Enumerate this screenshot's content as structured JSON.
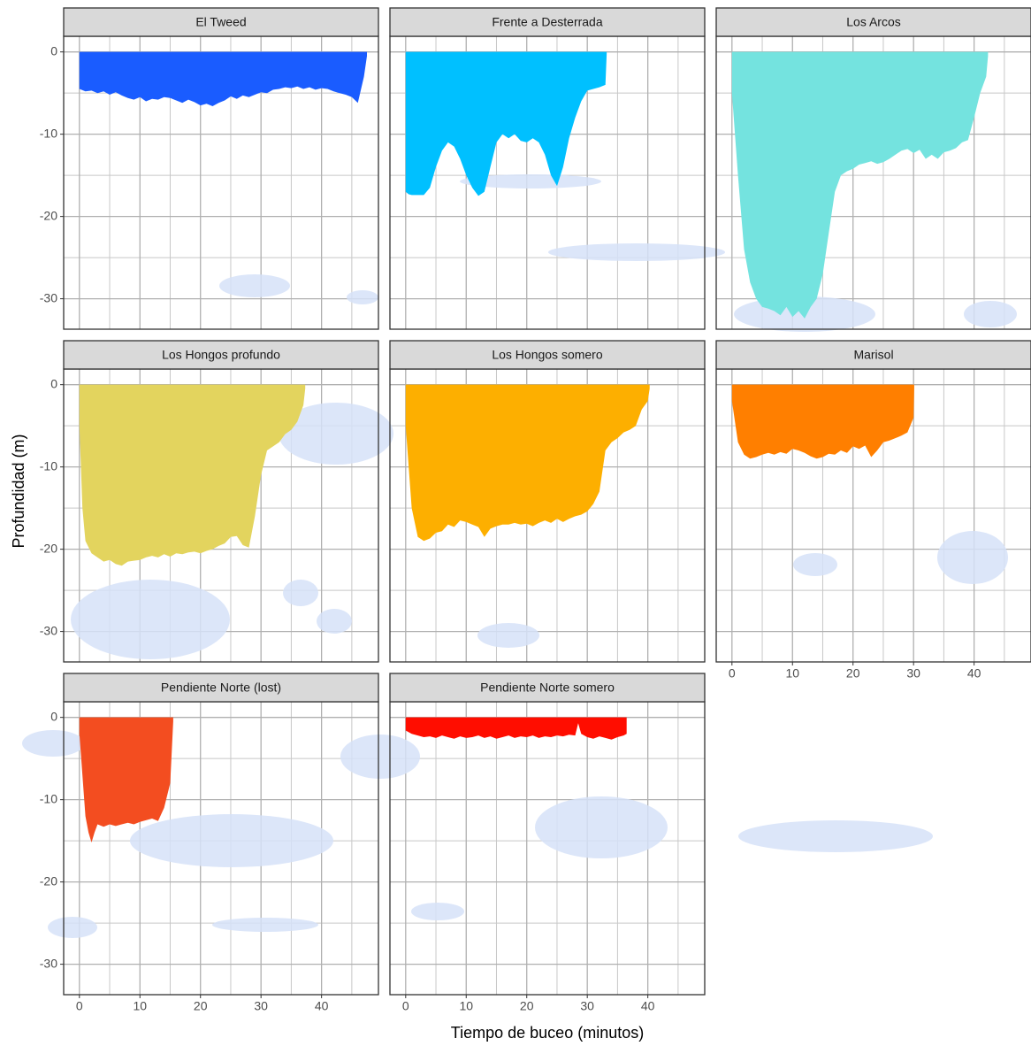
{
  "chart_data": {
    "type": "area",
    "xlabel": "Tiempo de buceo (minutos)",
    "ylabel": "Profundidad (m)",
    "xlim": [
      -2.6,
      49.4
    ],
    "ylim": [
      -33.7,
      1.9
    ],
    "xticks": [
      0,
      10,
      20,
      30,
      40
    ],
    "yticks": [
      0,
      -10,
      -20,
      -30
    ],
    "x_minor_ticks": [
      5,
      15,
      25,
      35,
      45
    ],
    "y_minor_ticks": [
      -5,
      -15,
      -25
    ],
    "grid": true,
    "series": [
      {
        "name": "El Tweed",
        "color": "#1a5cff",
        "x": [
          0,
          1,
          2,
          3,
          4,
          5,
          6,
          7,
          8,
          9,
          10,
          11,
          12,
          13,
          14,
          15,
          16,
          17,
          18,
          19,
          20,
          21,
          22,
          23,
          24,
          25,
          26,
          27,
          28,
          29,
          30,
          31,
          32,
          33,
          34,
          35,
          36,
          37,
          38,
          39,
          40,
          41,
          42,
          43,
          44,
          45,
          46,
          47,
          47.5
        ],
        "values": [
          -4.5,
          -4.8,
          -4.7,
          -5,
          -4.8,
          -5.2,
          -4.9,
          -5.3,
          -5.6,
          -5.8,
          -5.5,
          -6,
          -5.7,
          -5.8,
          -5.5,
          -5.6,
          -5.9,
          -6.2,
          -5.8,
          -6.1,
          -6.5,
          -6.3,
          -6.6,
          -6.2,
          -5.9,
          -5.4,
          -5.7,
          -5.3,
          -5.5,
          -5.2,
          -4.9,
          -5,
          -4.6,
          -4.5,
          -4.3,
          -4.4,
          -4.2,
          -4.5,
          -4.3,
          -4.6,
          -4.4,
          -4.5,
          -4.8,
          -5,
          -5.2,
          -5.5,
          -6.2,
          -3,
          -0.5
        ]
      },
      {
        "name": "Frente a Desterrada",
        "color": "#00c0ff",
        "x": [
          0,
          0.5,
          1,
          2,
          3,
          4,
          5,
          6,
          7,
          8,
          9,
          10,
          11,
          12,
          13,
          14,
          15,
          16,
          17,
          18,
          19,
          20,
          21,
          22,
          23,
          24,
          25,
          26,
          27,
          28,
          29,
          30,
          31,
          32,
          33,
          33.2
        ],
        "values": [
          -17,
          -17.3,
          -17.4,
          -17.4,
          -17.4,
          -16.5,
          -14,
          -12,
          -11,
          -11.5,
          -13,
          -15,
          -16.5,
          -17.5,
          -17,
          -14,
          -11,
          -10,
          -10.5,
          -10,
          -10.8,
          -11,
          -10.5,
          -11,
          -12.5,
          -15,
          -16.3,
          -14,
          -10.5,
          -8,
          -6,
          -4.7,
          -4.5,
          -4.3,
          -4,
          -0.3
        ]
      },
      {
        "name": "Los Arcos",
        "color": "#74e3df",
        "x": [
          0,
          1,
          2,
          3,
          4,
          5,
          6,
          7,
          8,
          9,
          10,
          11,
          12,
          13,
          14,
          15,
          16,
          17,
          18,
          19,
          20,
          21,
          22,
          23,
          24,
          25,
          26,
          27,
          28,
          29,
          30,
          31,
          32,
          33,
          34,
          35,
          36,
          37,
          38,
          39,
          40,
          41,
          42,
          42.3
        ],
        "values": [
          -5,
          -15,
          -24,
          -28,
          -30,
          -31,
          -31.2,
          -31.5,
          -32,
          -31,
          -32.2,
          -31.5,
          -32.4,
          -31,
          -30,
          -27,
          -22,
          -17,
          -15,
          -14.5,
          -14.2,
          -13.7,
          -13.5,
          -13.3,
          -13.6,
          -13.4,
          -13,
          -12.5,
          -12,
          -11.8,
          -12.3,
          -11.9,
          -13,
          -12.5,
          -13,
          -12.2,
          -12,
          -11.7,
          -11,
          -10.7,
          -8,
          -5,
          -3,
          -0.5
        ]
      },
      {
        "name": "Los Hongos profundo",
        "color": "#e3d45e",
        "x": [
          0,
          0.5,
          1,
          2,
          3,
          4,
          5,
          6,
          7,
          8,
          9,
          10,
          11,
          12,
          13,
          14,
          15,
          16,
          17,
          18,
          19,
          20,
          21,
          22,
          23,
          24,
          25,
          26,
          27,
          28,
          29,
          30,
          31,
          32,
          33,
          34,
          35,
          36,
          37,
          37.3
        ],
        "values": [
          -5,
          -15,
          -19,
          -20.5,
          -21,
          -21.5,
          -21.3,
          -21.8,
          -22,
          -21.5,
          -21.4,
          -21.3,
          -21,
          -20.8,
          -21,
          -20.6,
          -20.9,
          -20.5,
          -20.6,
          -20.4,
          -20.3,
          -20.5,
          -20.2,
          -20,
          -19.6,
          -19.3,
          -18.5,
          -18.4,
          -19.5,
          -19.8,
          -16,
          -11,
          -8,
          -7.5,
          -7,
          -6,
          -5.5,
          -4.5,
          -2.5,
          -0.5
        ]
      },
      {
        "name": "Los Hongos somero",
        "color": "#fdaf00",
        "x": [
          0,
          1,
          2,
          3,
          4,
          5,
          6,
          7,
          8,
          9,
          10,
          11,
          12,
          13,
          14,
          15,
          16,
          17,
          18,
          19,
          20,
          21,
          22,
          23,
          24,
          25,
          26,
          27,
          28,
          29,
          30,
          31,
          32,
          33,
          34,
          35,
          36,
          37,
          38,
          39,
          40,
          40.3
        ],
        "values": [
          -5,
          -15,
          -18.5,
          -19,
          -18.7,
          -18,
          -17.8,
          -17,
          -17.3,
          -16.5,
          -16.7,
          -17,
          -17.3,
          -18.5,
          -17.5,
          -17.2,
          -17,
          -17,
          -16.8,
          -17,
          -16.9,
          -17.2,
          -16.8,
          -16.5,
          -16.8,
          -16.3,
          -16.7,
          -16.3,
          -16,
          -15.8,
          -15.4,
          -14.5,
          -13,
          -8,
          -7,
          -6.5,
          -5.8,
          -5.5,
          -5,
          -3,
          -2,
          -0.5
        ]
      },
      {
        "name": "Marisol",
        "color": "#ff7f00",
        "x": [
          0,
          1,
          2,
          3,
          4,
          5,
          6,
          7,
          8,
          9,
          10,
          11,
          12,
          13,
          14,
          15,
          16,
          17,
          18,
          19,
          20,
          21,
          22,
          23,
          24,
          25,
          26,
          27,
          28,
          29,
          30,
          30.1
        ],
        "values": [
          -2,
          -7,
          -8.5,
          -9,
          -8.8,
          -8.5,
          -8.3,
          -8.5,
          -8.2,
          -8.4,
          -7.8,
          -8,
          -8.3,
          -8.7,
          -9,
          -8.8,
          -8.4,
          -8.5,
          -8,
          -8.3,
          -7.5,
          -7.8,
          -7.4,
          -8.8,
          -8,
          -7,
          -6.8,
          -6.5,
          -6.2,
          -5.8,
          -4,
          -0.5
        ]
      },
      {
        "name": "Pendiente Norte (lost)",
        "color": "#f34d20",
        "x": [
          0,
          0.5,
          1,
          1.5,
          2,
          2.5,
          3,
          4,
          5,
          6,
          7,
          8,
          9,
          10,
          11,
          12,
          13,
          14,
          15,
          15.5
        ],
        "values": [
          -2,
          -7,
          -12,
          -14,
          -15.2,
          -14,
          -13,
          -13.3,
          -13,
          -13.2,
          -13,
          -12.8,
          -13,
          -12.7,
          -12.5,
          -12.3,
          -12.6,
          -11,
          -8,
          -0.5
        ]
      },
      {
        "name": "Pendiente Norte somero",
        "color": "#ff0d00",
        "x": [
          0,
          1,
          2,
          3,
          4,
          5,
          6,
          7,
          8,
          9,
          10,
          11,
          12,
          13,
          14,
          15,
          16,
          17,
          18,
          19,
          20,
          21,
          22,
          23,
          24,
          25,
          26,
          27,
          28,
          28.5,
          29,
          30,
          31,
          32,
          33,
          34,
          35,
          36,
          36.5
        ],
        "values": [
          -1.6,
          -2,
          -2.2,
          -2.4,
          -2.3,
          -2.5,
          -2.2,
          -2.4,
          -2.6,
          -2.3,
          -2.5,
          -2.4,
          -2.2,
          -2.5,
          -2.3,
          -2.6,
          -2.4,
          -2.2,
          -2.5,
          -2.3,
          -2.4,
          -2.2,
          -2.5,
          -2.3,
          -2.4,
          -2.2,
          -2.3,
          -2.1,
          -2.2,
          -0.7,
          -2,
          -2.4,
          -2.6,
          -2.3,
          -2.5,
          -2.7,
          -2.4,
          -2.2,
          -2
        ]
      }
    ]
  }
}
